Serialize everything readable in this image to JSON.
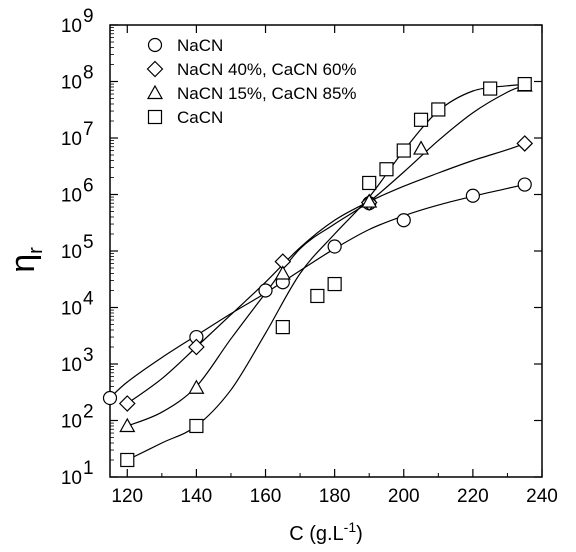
{
  "chart_data": {
    "type": "scatter",
    "xlabel": "C (g.L",
    "xlabel_superscript": "-1",
    "xlabel_suffix": ")",
    "ylabel": "η",
    "ylabel_subscript": "r",
    "xlim": [
      115,
      240
    ],
    "ylim": [
      10,
      1000000000
    ],
    "yscale": "log",
    "grid": false,
    "legend_position": "top-left",
    "x_ticks": [
      120,
      140,
      160,
      180,
      200,
      220,
      240
    ],
    "x_tick_labels": [
      "120",
      "140",
      "160",
      "180",
      "200",
      "220",
      "240"
    ],
    "y_ticks": [
      10,
      100,
      1000,
      10000,
      100000,
      1000000,
      10000000,
      100000000,
      1000000000
    ],
    "y_tick_labels": [
      {
        "base": "10",
        "exp": "1"
      },
      {
        "base": "10",
        "exp": "2"
      },
      {
        "base": "10",
        "exp": "3"
      },
      {
        "base": "10",
        "exp": "4"
      },
      {
        "base": "10",
        "exp": "5"
      },
      {
        "base": "10",
        "exp": "6"
      },
      {
        "base": "10",
        "exp": "7"
      },
      {
        "base": "10",
        "exp": "8"
      },
      {
        "base": "10",
        "exp": "9"
      }
    ],
    "series": [
      {
        "name": "NaCN",
        "marker": "circle",
        "x": [
          115,
          140,
          160,
          165,
          180,
          190,
          200,
          220,
          235
        ],
        "y": [
          250,
          3000,
          20000,
          28000,
          120000,
          700000,
          350000,
          950000,
          1500000
        ],
        "fit_x": [
          115,
          120,
          130,
          140,
          150,
          160,
          170,
          180,
          190,
          200,
          210,
          220,
          230,
          235
        ],
        "fit_y": [
          250,
          480,
          1300,
          3200,
          7800,
          18000,
          45000,
          110000,
          240000,
          420000,
          650000,
          930000,
          1280000,
          1500000
        ]
      },
      {
        "name": "NaCN 40%, CaCN 60%",
        "marker": "diamond",
        "x": [
          120,
          140,
          165,
          190,
          235
        ],
        "y": [
          200,
          2000,
          65000,
          720000,
          8000000
        ],
        "fit_x": [
          120,
          130,
          140,
          150,
          160,
          170,
          180,
          190,
          200,
          210,
          220,
          230,
          235
        ],
        "fit_y": [
          200,
          550,
          2000,
          7500,
          28000,
          115000,
          350000,
          750000,
          1400000,
          2400000,
          4000000,
          6200000,
          8000000
        ]
      },
      {
        "name": "NaCN 15%, CaCN 85%",
        "marker": "triangle",
        "x": [
          120,
          140,
          165,
          190,
          205,
          235
        ],
        "y": [
          80,
          380,
          40000,
          750000,
          6500000,
          85000000
        ],
        "fit_x": [
          120,
          130,
          140,
          150,
          160,
          170,
          180,
          190,
          200,
          210,
          220,
          230,
          235
        ],
        "fit_y": [
          80,
          140,
          400,
          2800,
          18000,
          110000,
          300000,
          750000,
          2500000,
          9000000,
          28000000,
          65000000,
          85000000
        ]
      },
      {
        "name": "CaCN",
        "marker": "square",
        "x": [
          120,
          140,
          165,
          175,
          180,
          190,
          195,
          200,
          205,
          210,
          225,
          235
        ],
        "y": [
          20,
          80,
          4500,
          16000,
          26000,
          1600000,
          2800000,
          6000000,
          21000000,
          32000000,
          75000000,
          90000000
        ],
        "fit_x": [
          120,
          130,
          140,
          150,
          160,
          170,
          180,
          190,
          200,
          210,
          220,
          230,
          235
        ],
        "fit_y": [
          20,
          40,
          80,
          350,
          3500,
          40000,
          200000,
          900000,
          6000000,
          30000000,
          68000000,
          84000000,
          88000000
        ]
      }
    ]
  }
}
